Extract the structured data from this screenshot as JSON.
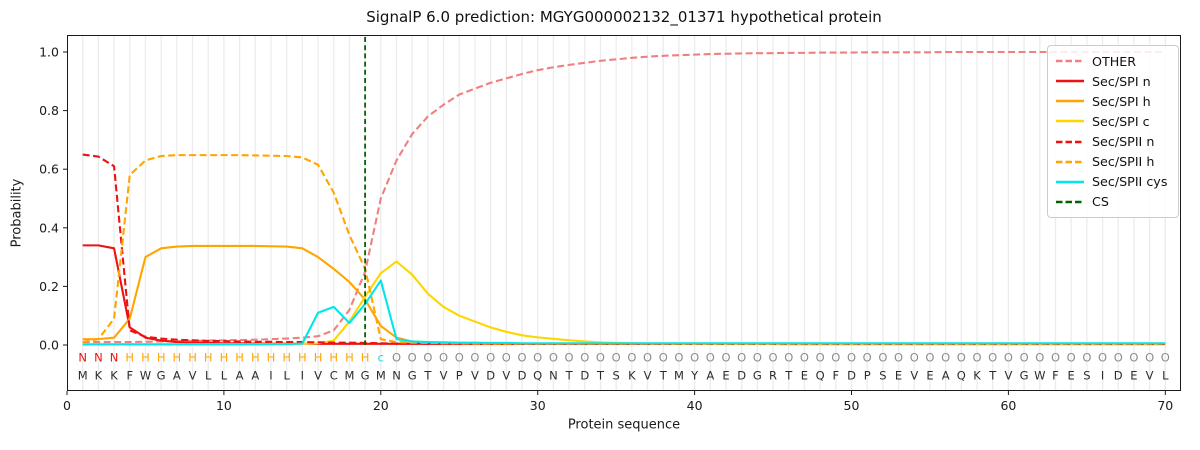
{
  "chart_data": {
    "type": "line",
    "title": "SignalP 6.0 prediction: MGYG000002132_01371 hypothetical protein",
    "xlabel": "Protein sequence",
    "ylabel": "Probability",
    "xlim": [
      0,
      71
    ],
    "ylim": [
      -0.157,
      1.058
    ],
    "xticks": [
      0,
      10,
      20,
      30,
      40,
      50,
      60,
      70
    ],
    "yticks": [
      0.0,
      0.2,
      0.4,
      0.6,
      0.8,
      1.0
    ],
    "grid": "vertical line at every residue position 1-70",
    "legend_position": "upper right",
    "x_start": 1,
    "series": [
      {
        "name": "OTHER",
        "color": "#f08080",
        "dash": true,
        "values": [
          0.01,
          0.01,
          0.01,
          0.01,
          0.011,
          0.012,
          0.013,
          0.014,
          0.015,
          0.016,
          0.017,
          0.018,
          0.02,
          0.022,
          0.025,
          0.03,
          0.05,
          0.12,
          0.25,
          0.5,
          0.63,
          0.72,
          0.78,
          0.82,
          0.855,
          0.875,
          0.895,
          0.91,
          0.925,
          0.938,
          0.948,
          0.956,
          0.963,
          0.97,
          0.975,
          0.98,
          0.984,
          0.987,
          0.989,
          0.991,
          0.993,
          0.994,
          0.995,
          0.996,
          0.996,
          0.997,
          0.997,
          0.998,
          0.998,
          0.998,
          0.999,
          0.999,
          0.999,
          0.999,
          0.999,
          1.0,
          1.0,
          1.0,
          1.0,
          1.0,
          1.0,
          1.0,
          1.0,
          1.0,
          1.0,
          1.0,
          1.0,
          1.0,
          1.0,
          1.0
        ]
      },
      {
        "name": "Sec/SPI n",
        "color": "#ee1111",
        "dash": false,
        "values": [
          0.34,
          0.34,
          0.33,
          0.06,
          0.025,
          0.015,
          0.01,
          0.008,
          0.007,
          0.006,
          0.006,
          0.005,
          0.005,
          0.005,
          0.005,
          0.004,
          0.004,
          0.004,
          0.004,
          0.004,
          0.004,
          0.004,
          0.004,
          0.004,
          0.004,
          0.004,
          0.004,
          0.004,
          0.004,
          0.004,
          0.004,
          0.004,
          0.004,
          0.004,
          0.004,
          0.004,
          0.004,
          0.004,
          0.004,
          0.004,
          0.004,
          0.004,
          0.004,
          0.004,
          0.004,
          0.004,
          0.004,
          0.004,
          0.004,
          0.004,
          0.004,
          0.004,
          0.004,
          0.004,
          0.004,
          0.004,
          0.004,
          0.004,
          0.004,
          0.004,
          0.004,
          0.004,
          0.004,
          0.004,
          0.004,
          0.004,
          0.004,
          0.004,
          0.004,
          0.004
        ]
      },
      {
        "name": "Sec/SPI h",
        "color": "#ffa500",
        "dash": false,
        "values": [
          0.02,
          0.02,
          0.025,
          0.09,
          0.3,
          0.33,
          0.336,
          0.338,
          0.338,
          0.338,
          0.338,
          0.338,
          0.337,
          0.336,
          0.33,
          0.3,
          0.26,
          0.215,
          0.155,
          0.065,
          0.025,
          0.012,
          0.009,
          0.007,
          0.006,
          0.006,
          0.005,
          0.005,
          0.005,
          0.005,
          0.005,
          0.005,
          0.005,
          0.005,
          0.005,
          0.005,
          0.005,
          0.005,
          0.005,
          0.005,
          0.005,
          0.005,
          0.005,
          0.005,
          0.005,
          0.005,
          0.005,
          0.005,
          0.005,
          0.005,
          0.005,
          0.005,
          0.005,
          0.005,
          0.005,
          0.005,
          0.005,
          0.005,
          0.005,
          0.005,
          0.005,
          0.005,
          0.005,
          0.005,
          0.005,
          0.005,
          0.005,
          0.005,
          0.005,
          0.005
        ]
      },
      {
        "name": "Sec/SPI c",
        "color": "#ffd500",
        "dash": false,
        "values": [
          0.003,
          0.003,
          0.003,
          0.003,
          0.003,
          0.003,
          0.003,
          0.003,
          0.003,
          0.003,
          0.003,
          0.003,
          0.004,
          0.004,
          0.005,
          0.006,
          0.015,
          0.08,
          0.165,
          0.245,
          0.285,
          0.24,
          0.175,
          0.13,
          0.1,
          0.08,
          0.06,
          0.045,
          0.033,
          0.026,
          0.021,
          0.016,
          0.012,
          0.009,
          0.007,
          0.006,
          0.005,
          0.005,
          0.004,
          0.004,
          0.003,
          0.003,
          0.003,
          0.003,
          0.003,
          0.002,
          0.002,
          0.002,
          0.002,
          0.002,
          0.002,
          0.002,
          0.002,
          0.002,
          0.002,
          0.002,
          0.002,
          0.002,
          0.002,
          0.002,
          0.002,
          0.002,
          0.002,
          0.002,
          0.002,
          0.002,
          0.002,
          0.002,
          0.002,
          0.002
        ]
      },
      {
        "name": "Sec/SPII n",
        "color": "#ee1111",
        "dash": true,
        "values": [
          0.65,
          0.643,
          0.61,
          0.05,
          0.028,
          0.022,
          0.018,
          0.016,
          0.014,
          0.013,
          0.012,
          0.011,
          0.011,
          0.01,
          0.01,
          0.009,
          0.008,
          0.008,
          0.007,
          0.006,
          0.005,
          0.005,
          0.004,
          0.004,
          0.004,
          0.004,
          0.004,
          0.004,
          0.004,
          0.004,
          0.004,
          0.004,
          0.004,
          0.004,
          0.004,
          0.004,
          0.004,
          0.004,
          0.004,
          0.004,
          0.004,
          0.004,
          0.004,
          0.004,
          0.004,
          0.004,
          0.004,
          0.004,
          0.004,
          0.004,
          0.004,
          0.004,
          0.004,
          0.004,
          0.004,
          0.004,
          0.004,
          0.004,
          0.004,
          0.004,
          0.004,
          0.004,
          0.004,
          0.004,
          0.004,
          0.004,
          0.004,
          0.004,
          0.004,
          0.004
        ]
      },
      {
        "name": "Sec/SPII h",
        "color": "#ffa500",
        "dash": true,
        "values": [
          0.01,
          0.02,
          0.09,
          0.58,
          0.63,
          0.645,
          0.648,
          0.648,
          0.648,
          0.648,
          0.648,
          0.647,
          0.646,
          0.645,
          0.64,
          0.615,
          0.52,
          0.375,
          0.26,
          0.02,
          0.01,
          0.008,
          0.007,
          0.006,
          0.006,
          0.005,
          0.005,
          0.005,
          0.005,
          0.005,
          0.005,
          0.005,
          0.005,
          0.005,
          0.005,
          0.005,
          0.005,
          0.005,
          0.005,
          0.005,
          0.005,
          0.005,
          0.005,
          0.005,
          0.005,
          0.005,
          0.005,
          0.005,
          0.005,
          0.005,
          0.005,
          0.005,
          0.005,
          0.005,
          0.005,
          0.005,
          0.005,
          0.005,
          0.005,
          0.005,
          0.005,
          0.005,
          0.005,
          0.005,
          0.005,
          0.005,
          0.005,
          0.005,
          0.005,
          0.005
        ]
      },
      {
        "name": "Sec/SPII cys",
        "color": "#00e6eb",
        "dash": false,
        "values": [
          0.002,
          0.002,
          0.002,
          0.002,
          0.002,
          0.002,
          0.002,
          0.002,
          0.002,
          0.002,
          0.002,
          0.002,
          0.003,
          0.003,
          0.005,
          0.11,
          0.13,
          0.075,
          0.14,
          0.22,
          0.02,
          0.012,
          0.01,
          0.009,
          0.008,
          0.008,
          0.007,
          0.007,
          0.006,
          0.006,
          0.006,
          0.006,
          0.006,
          0.006,
          0.006,
          0.006,
          0.006,
          0.006,
          0.006,
          0.006,
          0.006,
          0.006,
          0.006,
          0.006,
          0.006,
          0.006,
          0.006,
          0.006,
          0.006,
          0.006,
          0.006,
          0.006,
          0.006,
          0.006,
          0.006,
          0.006,
          0.006,
          0.006,
          0.006,
          0.006,
          0.006,
          0.006,
          0.006,
          0.006,
          0.006,
          0.006,
          0.006,
          0.006,
          0.006,
          0.006
        ]
      }
    ],
    "cs_marker": {
      "label": "CS",
      "position": 19,
      "color": "#006400",
      "dash": true
    },
    "sequence": "MKKFWGAVLLAAILIVCMGMNGTVPVDVDQNTDTSKVTMYAEDGRTEQFDPSEVEAQKTVGWFESIDEVL",
    "region_labels": "NNNHHHHHHHHHHHHHHHHcOOOOOOOOOOOOOOOOOOOOOOOOOOOOOOOOOOOOOOOOOOOOOOOOOO",
    "region_colors": {
      "N": "#ee1111",
      "H": "#ffa500",
      "c": "#00e6eb",
      "O": "#8c8c8c"
    },
    "residue_color": "#2b2b2b",
    "grid_color": "#ececec",
    "axis_color": "#1a1a1a"
  }
}
